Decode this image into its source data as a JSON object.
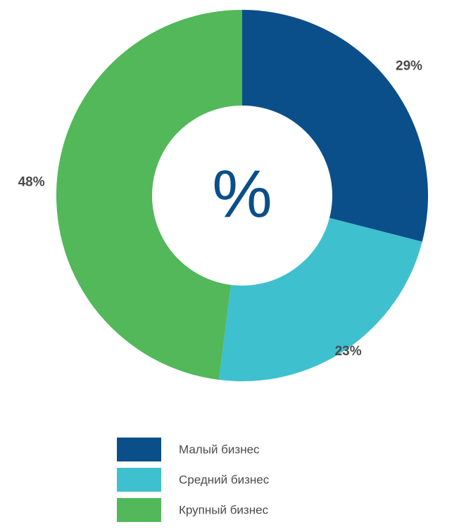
{
  "chart_data": {
    "type": "pie",
    "variant": "donut",
    "center_text": "%",
    "categories": [
      "Малый бизнес",
      "Средний бизнес",
      "Крупный бизнес"
    ],
    "values": [
      29,
      23,
      48
    ],
    "value_labels": [
      "29%",
      "23%",
      "48%"
    ],
    "colors": [
      "#0b4f8a",
      "#3fc0cf",
      "#52b85a"
    ],
    "legend": {
      "placement": "bottom",
      "entries": [
        "Малый бизнес",
        "Средний бизнес",
        "Крупный бизнес"
      ]
    },
    "title": ""
  }
}
